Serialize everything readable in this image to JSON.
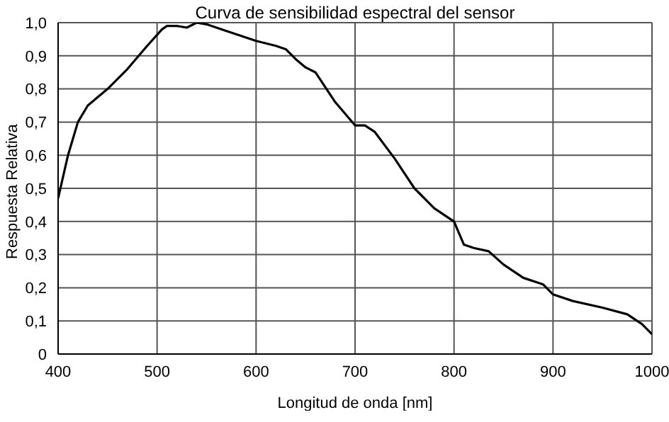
{
  "chart_data": {
    "type": "line",
    "title": "Curva de sensibilidad espectral del sensor",
    "xlabel": "Longitud de onda [nm]",
    "ylabel": "Respuesta Relativa",
    "x": [
      400,
      410,
      420,
      430,
      450,
      470,
      490,
      505,
      510,
      520,
      530,
      540,
      550,
      570,
      600,
      620,
      630,
      640,
      650,
      660,
      680,
      700,
      710,
      720,
      740,
      760,
      780,
      800,
      810,
      820,
      835,
      850,
      870,
      890,
      900,
      920,
      950,
      975,
      990,
      1000
    ],
    "series": [
      {
        "color": "#000000",
        "values": [
          0.47,
          0.6,
          0.7,
          0.75,
          0.8,
          0.86,
          0.93,
          0.98,
          0.99,
          0.99,
          0.985,
          1.0,
          0.995,
          0.975,
          0.945,
          0.93,
          0.92,
          0.89,
          0.865,
          0.85,
          0.76,
          0.69,
          0.69,
          0.67,
          0.59,
          0.5,
          0.44,
          0.4,
          0.33,
          0.32,
          0.31,
          0.27,
          0.23,
          0.21,
          0.18,
          0.16,
          0.14,
          0.12,
          0.09,
          0.06
        ]
      }
    ],
    "xlim": [
      400,
      1000
    ],
    "xticks": [
      400,
      500,
      600,
      700,
      800,
      900,
      1000
    ],
    "ylim": [
      0,
      1
    ],
    "yticks": [
      {
        "value": 0,
        "label": "0"
      },
      {
        "value": 0.1,
        "label": "0,1"
      },
      {
        "value": 0.2,
        "label": "0,2"
      },
      {
        "value": 0.3,
        "label": "0,3"
      },
      {
        "value": 0.4,
        "label": "0,4"
      },
      {
        "value": 0.5,
        "label": "0,5"
      },
      {
        "value": 0.6,
        "label": "0,6"
      },
      {
        "value": 0.7,
        "label": "0,7"
      },
      {
        "value": 0.8,
        "label": "0,8"
      },
      {
        "value": 0.9,
        "label": "0,9"
      },
      {
        "value": 1,
        "label": "1,0"
      }
    ],
    "grid": true,
    "legend": false,
    "marker": "none",
    "line_style": "solid"
  }
}
